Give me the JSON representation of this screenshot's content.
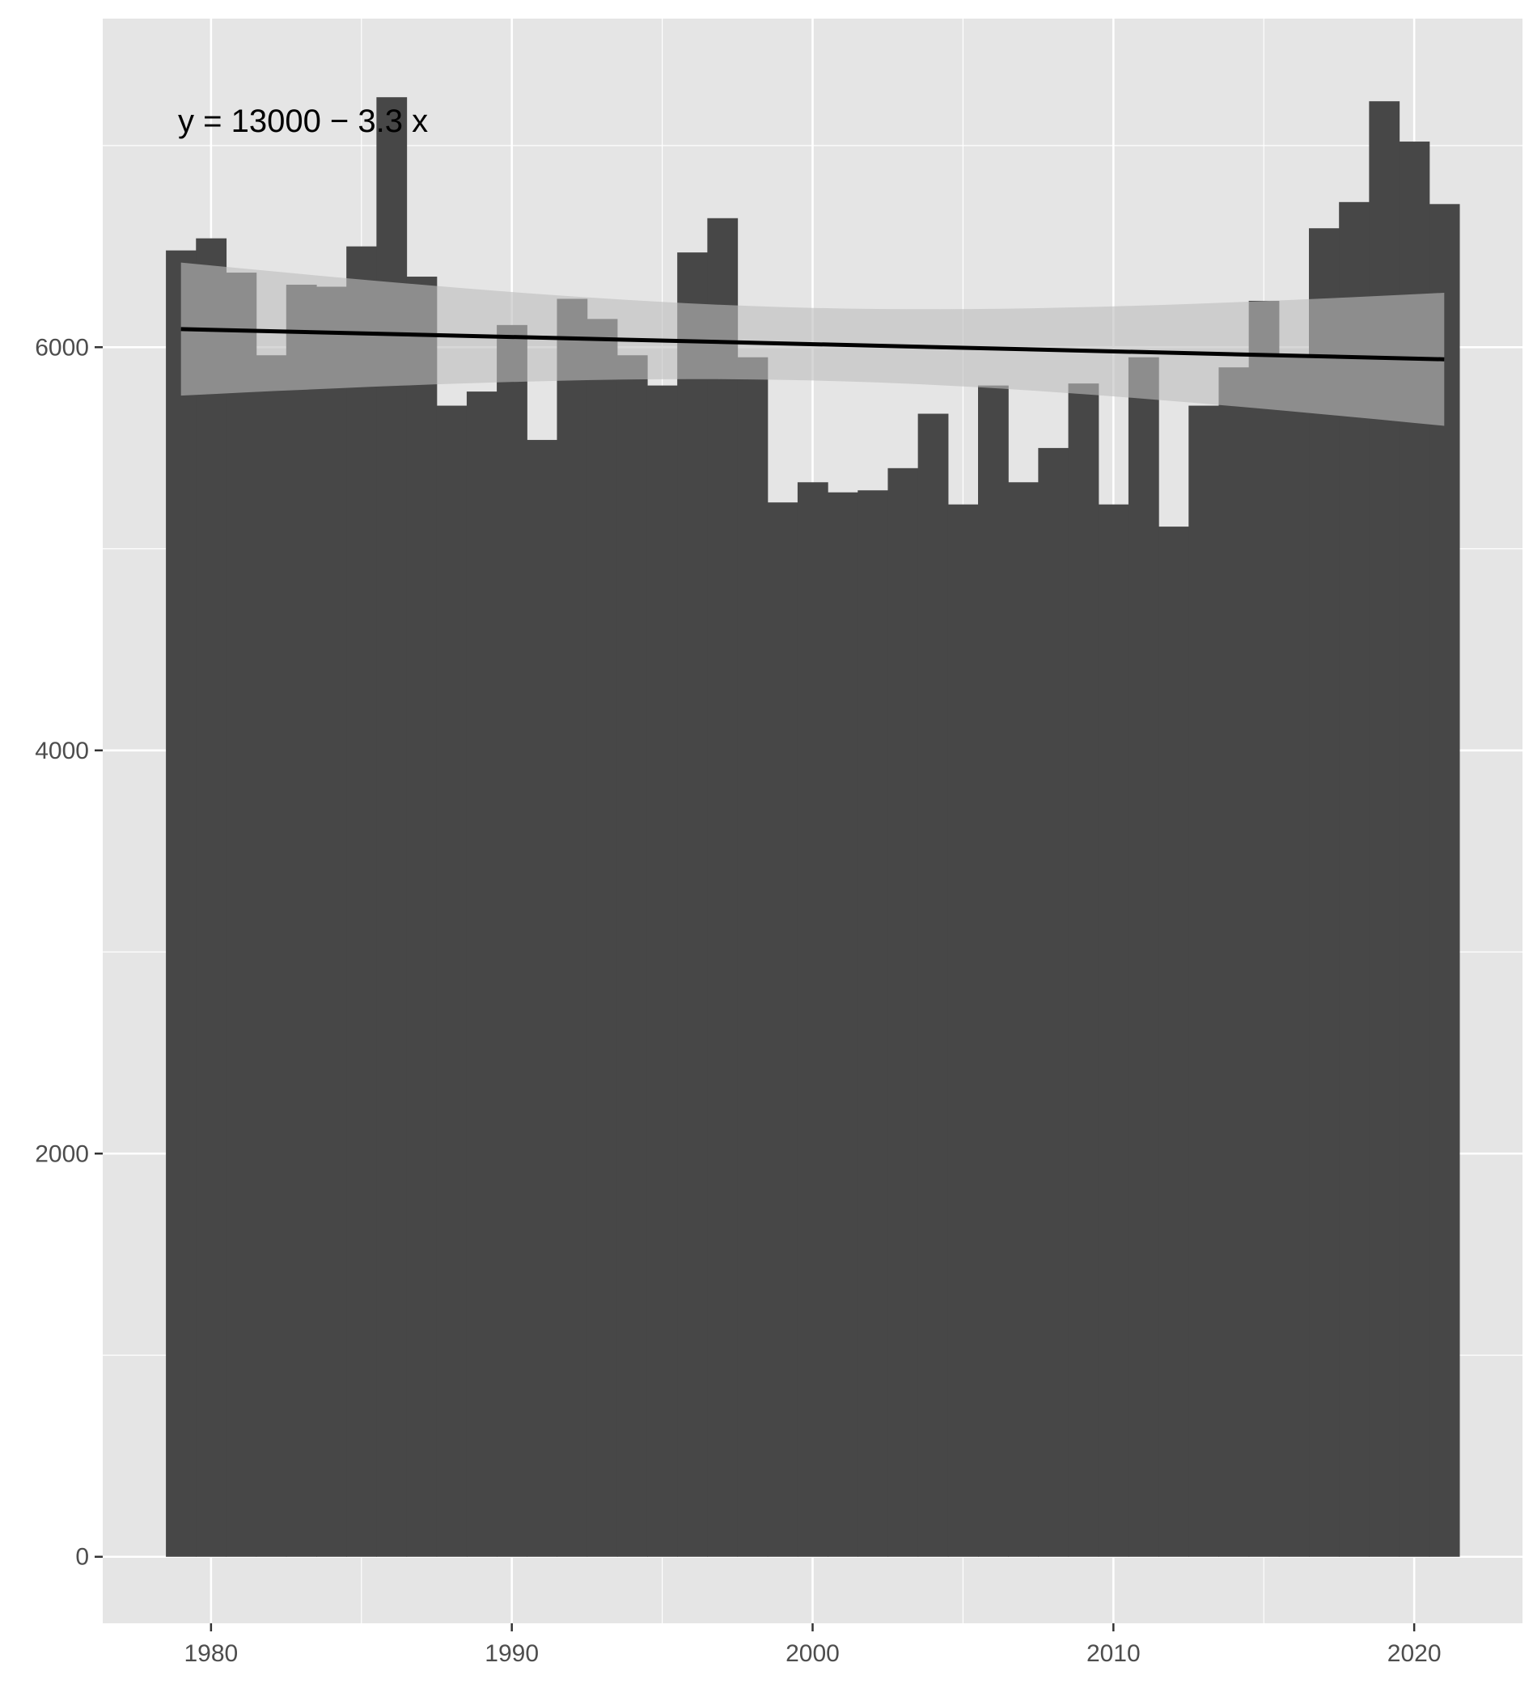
{
  "chart_data": {
    "type": "bar",
    "title": "",
    "xlabel": "",
    "ylabel": "",
    "x": [
      1979,
      1980,
      1981,
      1982,
      1983,
      1984,
      1985,
      1986,
      1987,
      1988,
      1989,
      1990,
      1991,
      1992,
      1993,
      1994,
      1995,
      1996,
      1997,
      1998,
      1999,
      2000,
      2001,
      2002,
      2003,
      2004,
      2005,
      2006,
      2007,
      2008,
      2009,
      2010,
      2011,
      2012,
      2013,
      2014,
      2015,
      2016,
      2017,
      2018,
      2019,
      2020,
      2021
    ],
    "values": [
      6480,
      6540,
      6370,
      5960,
      6310,
      6300,
      6500,
      7240,
      6350,
      5710,
      5780,
      6110,
      5540,
      6240,
      6140,
      5960,
      5810,
      6470,
      6640,
      5950,
      5230,
      5330,
      5280,
      5290,
      5400,
      5670,
      5220,
      5810,
      5330,
      5500,
      5820,
      5220,
      5950,
      5110,
      5710,
      5900,
      6230,
      5960,
      6590,
      6720,
      7220,
      7020,
      6710
    ],
    "xlim": [
      1976.4,
      2023.6
    ],
    "ylim": [
      -330,
      7630
    ],
    "x_ticks": [
      1980,
      1990,
      2000,
      2010,
      2020
    ],
    "y_ticks": [
      0,
      2000,
      4000,
      6000
    ],
    "trend_line": {
      "x": [
        1979,
        2021
      ],
      "y": [
        6090,
        5940
      ],
      "ci_lower": [
        5760,
        5610
      ],
      "ci_upper": [
        6420,
        6270
      ],
      "ci_mid_lower": 5840,
      "ci_mid_upper": 6200
    },
    "equation_text": "y = 13000 − 3.3 x",
    "grid": true,
    "colors": {
      "panel_bg": "#e5e5e5",
      "grid": "#ffffff",
      "bars": "#474747",
      "trend": "#000000",
      "ribbon": "#bdbdbd"
    }
  }
}
